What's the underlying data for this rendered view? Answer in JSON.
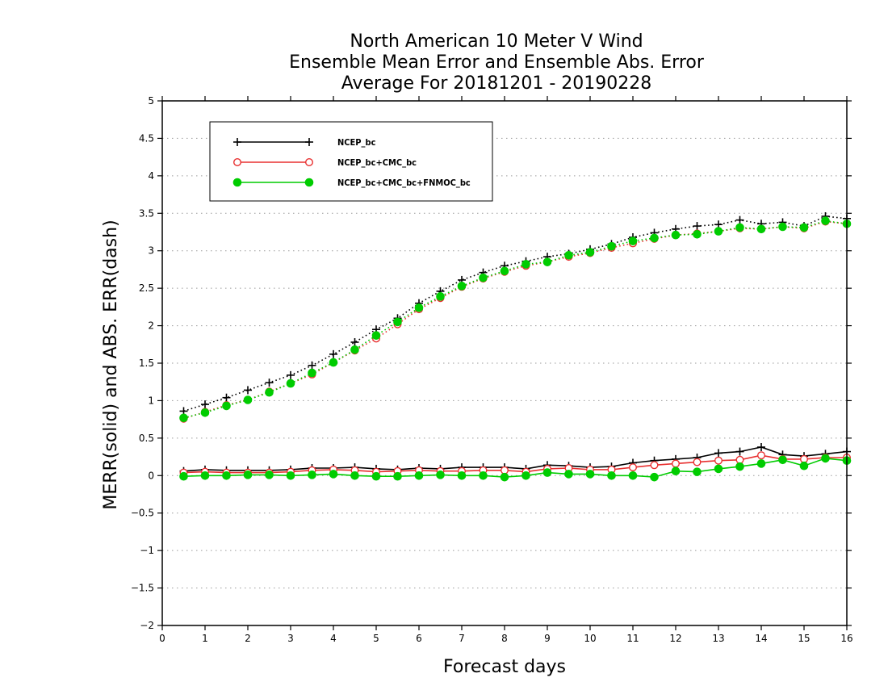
{
  "colors": {
    "background": "#ffffff",
    "axis": "#000000",
    "grid": "#9a9a9a"
  },
  "chart_data": {
    "type": "line",
    "title": [
      "North American 10 Meter V Wind",
      "Ensemble Mean Error and Ensemble Abs. Error",
      "Average For 20181201 - 20190228"
    ],
    "xlabel": "Forecast days",
    "ylabel": "MERR(solid) and ABS. ERR(dash)",
    "xlim": [
      0,
      16
    ],
    "ylim": [
      -2,
      5
    ],
    "xticks": [
      0,
      1,
      2,
      3,
      4,
      5,
      6,
      7,
      8,
      9,
      10,
      11,
      12,
      13,
      14,
      15,
      16
    ],
    "yticks": [
      -2,
      -1.5,
      -1,
      -0.5,
      0,
      0.5,
      1,
      1.5,
      2,
      2.5,
      3,
      3.5,
      4,
      4.5,
      5
    ],
    "ytick_labels": [
      "−2",
      "−1.5",
      "−1",
      "−0.5",
      "0",
      "0.5",
      "1",
      "1.5",
      "2",
      "2.5",
      "3",
      "3.5",
      "4",
      "4.5",
      "5"
    ],
    "grid": "horizontal dotted",
    "legend_position": "top-left",
    "x": [
      0.5,
      1,
      1.5,
      2,
      2.5,
      3,
      3.5,
      4,
      4.5,
      5,
      5.5,
      6,
      6.5,
      7,
      7.5,
      8,
      8.5,
      9,
      9.5,
      10,
      10.5,
      11,
      11.5,
      12,
      12.5,
      13,
      13.5,
      14,
      14.5,
      15,
      15.5,
      16
    ],
    "series": [
      {
        "name": "NCEP_bc",
        "color": "#000000",
        "marker": "plus",
        "merr": [
          0.06,
          0.08,
          0.07,
          0.07,
          0.07,
          0.08,
          0.1,
          0.1,
          0.11,
          0.09,
          0.08,
          0.1,
          0.09,
          0.11,
          0.11,
          0.11,
          0.09,
          0.14,
          0.13,
          0.11,
          0.12,
          0.17,
          0.2,
          0.22,
          0.24,
          0.3,
          0.32,
          0.38,
          0.28,
          0.26,
          0.29,
          0.32
        ],
        "abs_err": [
          0.86,
          0.95,
          1.04,
          1.14,
          1.24,
          1.34,
          1.47,
          1.62,
          1.78,
          1.95,
          2.1,
          2.3,
          2.46,
          2.61,
          2.71,
          2.8,
          2.86,
          2.92,
          2.96,
          3.02,
          3.09,
          3.18,
          3.24,
          3.29,
          3.33,
          3.35,
          3.41,
          3.36,
          3.38,
          3.33,
          3.46,
          3.43
        ]
      },
      {
        "name": "NCEP_bc+CMC_bc",
        "color": "#e83030",
        "marker": "open-circle",
        "merr": [
          0.04,
          0.05,
          0.04,
          0.04,
          0.04,
          0.05,
          0.07,
          0.08,
          0.07,
          0.05,
          0.06,
          0.07,
          0.06,
          0.06,
          0.07,
          0.07,
          0.05,
          0.09,
          0.1,
          0.08,
          0.08,
          0.11,
          0.14,
          0.16,
          0.18,
          0.2,
          0.21,
          0.27,
          0.22,
          0.22,
          0.24,
          0.24
        ],
        "abs_err": [
          0.76,
          0.85,
          0.94,
          1.01,
          1.12,
          1.23,
          1.35,
          1.51,
          1.67,
          1.83,
          2.02,
          2.22,
          2.37,
          2.52,
          2.63,
          2.72,
          2.8,
          2.85,
          2.92,
          2.97,
          3.04,
          3.1,
          3.16,
          3.21,
          3.23,
          3.26,
          3.3,
          3.29,
          3.32,
          3.3,
          3.39,
          3.36
        ]
      },
      {
        "name": "NCEP_bc+CMC_bc+FNMOC_bc",
        "color": "#00cc00",
        "marker": "filled-circle",
        "merr": [
          -0.01,
          0.0,
          0.0,
          0.01,
          0.01,
          0.0,
          0.01,
          0.02,
          0.0,
          -0.01,
          -0.01,
          0.0,
          0.01,
          0.0,
          0.0,
          -0.02,
          0.0,
          0.04,
          0.02,
          0.02,
          0.0,
          0.0,
          -0.02,
          0.06,
          0.05,
          0.09,
          0.12,
          0.16,
          0.21,
          0.13,
          0.23,
          0.2
        ],
        "abs_err": [
          0.77,
          0.84,
          0.93,
          1.01,
          1.11,
          1.23,
          1.37,
          1.51,
          1.68,
          1.87,
          2.05,
          2.24,
          2.39,
          2.53,
          2.64,
          2.73,
          2.82,
          2.85,
          2.94,
          2.98,
          3.06,
          3.13,
          3.17,
          3.21,
          3.22,
          3.26,
          3.31,
          3.29,
          3.32,
          3.31,
          3.4,
          3.36
        ]
      }
    ]
  }
}
